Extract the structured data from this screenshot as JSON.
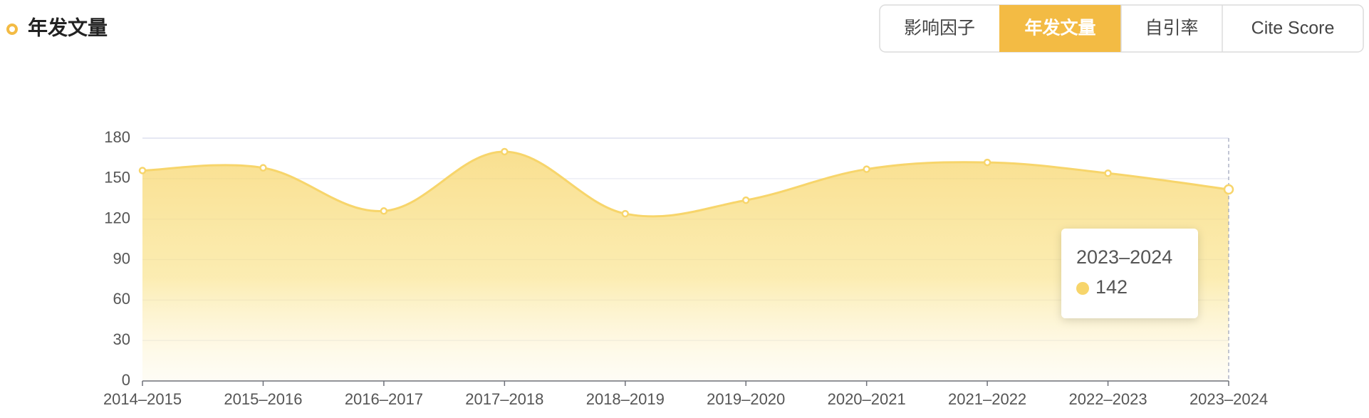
{
  "header": {
    "title": "年发文量",
    "tabs": [
      "影响因子",
      "年发文量",
      "自引率",
      "Cite Score"
    ],
    "active_tab": 1
  },
  "chart_data": {
    "type": "line",
    "categories": [
      "2014–2015",
      "2015–2016",
      "2016–2017",
      "2017–2018",
      "2018–2019",
      "2019–2020",
      "2020–2021",
      "2021–2022",
      "2022–2023",
      "2023–2024"
    ],
    "values": [
      156,
      158,
      126,
      170,
      124,
      134,
      157,
      162,
      154,
      142
    ],
    "color": "#f7d56b",
    "ylim": [
      0,
      180
    ],
    "yticks": [
      0,
      30,
      60,
      90,
      120,
      150,
      180
    ],
    "grid": true,
    "tooltip_index": 9
  }
}
